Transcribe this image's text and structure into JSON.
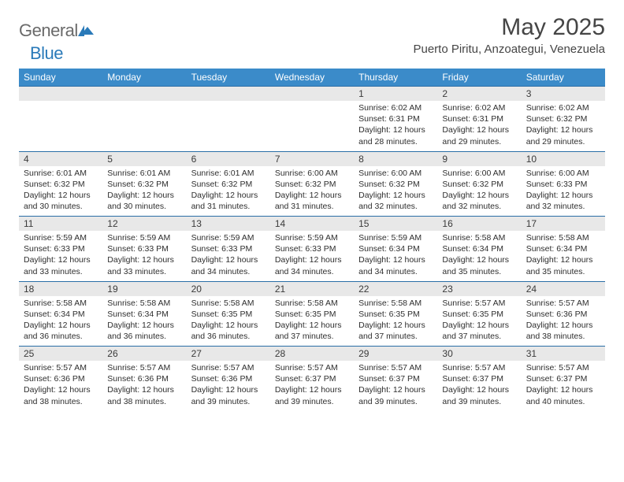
{
  "brand": {
    "part1": "General",
    "part2": "Blue"
  },
  "title": "May 2025",
  "location": "Puerto Piritu, Anzoategui, Venezuela",
  "colors": {
    "header_bg": "#3b8bc9",
    "header_text": "#ffffff",
    "daynum_bg": "#e8e8e8",
    "border": "#2a6ea6",
    "text": "#2e2e2e",
    "title_text": "#454545",
    "logo_gray": "#6a6a6a",
    "logo_blue": "#2a7ab9"
  },
  "fonts": {
    "title_size_pt": 22,
    "location_size_pt": 11,
    "header_size_pt": 9,
    "body_size_pt": 8
  },
  "day_headers": [
    "Sunday",
    "Monday",
    "Tuesday",
    "Wednesday",
    "Thursday",
    "Friday",
    "Saturday"
  ],
  "weeks": [
    {
      "nums": [
        "",
        "",
        "",
        "",
        "1",
        "2",
        "3"
      ],
      "cells": [
        null,
        null,
        null,
        null,
        {
          "sunrise": "Sunrise: 6:02 AM",
          "sunset": "Sunset: 6:31 PM",
          "day1": "Daylight: 12 hours",
          "day2": "and 28 minutes."
        },
        {
          "sunrise": "Sunrise: 6:02 AM",
          "sunset": "Sunset: 6:31 PM",
          "day1": "Daylight: 12 hours",
          "day2": "and 29 minutes."
        },
        {
          "sunrise": "Sunrise: 6:02 AM",
          "sunset": "Sunset: 6:32 PM",
          "day1": "Daylight: 12 hours",
          "day2": "and 29 minutes."
        }
      ]
    },
    {
      "nums": [
        "4",
        "5",
        "6",
        "7",
        "8",
        "9",
        "10"
      ],
      "cells": [
        {
          "sunrise": "Sunrise: 6:01 AM",
          "sunset": "Sunset: 6:32 PM",
          "day1": "Daylight: 12 hours",
          "day2": "and 30 minutes."
        },
        {
          "sunrise": "Sunrise: 6:01 AM",
          "sunset": "Sunset: 6:32 PM",
          "day1": "Daylight: 12 hours",
          "day2": "and 30 minutes."
        },
        {
          "sunrise": "Sunrise: 6:01 AM",
          "sunset": "Sunset: 6:32 PM",
          "day1": "Daylight: 12 hours",
          "day2": "and 31 minutes."
        },
        {
          "sunrise": "Sunrise: 6:00 AM",
          "sunset": "Sunset: 6:32 PM",
          "day1": "Daylight: 12 hours",
          "day2": "and 31 minutes."
        },
        {
          "sunrise": "Sunrise: 6:00 AM",
          "sunset": "Sunset: 6:32 PM",
          "day1": "Daylight: 12 hours",
          "day2": "and 32 minutes."
        },
        {
          "sunrise": "Sunrise: 6:00 AM",
          "sunset": "Sunset: 6:32 PM",
          "day1": "Daylight: 12 hours",
          "day2": "and 32 minutes."
        },
        {
          "sunrise": "Sunrise: 6:00 AM",
          "sunset": "Sunset: 6:33 PM",
          "day1": "Daylight: 12 hours",
          "day2": "and 32 minutes."
        }
      ]
    },
    {
      "nums": [
        "11",
        "12",
        "13",
        "14",
        "15",
        "16",
        "17"
      ],
      "cells": [
        {
          "sunrise": "Sunrise: 5:59 AM",
          "sunset": "Sunset: 6:33 PM",
          "day1": "Daylight: 12 hours",
          "day2": "and 33 minutes."
        },
        {
          "sunrise": "Sunrise: 5:59 AM",
          "sunset": "Sunset: 6:33 PM",
          "day1": "Daylight: 12 hours",
          "day2": "and 33 minutes."
        },
        {
          "sunrise": "Sunrise: 5:59 AM",
          "sunset": "Sunset: 6:33 PM",
          "day1": "Daylight: 12 hours",
          "day2": "and 34 minutes."
        },
        {
          "sunrise": "Sunrise: 5:59 AM",
          "sunset": "Sunset: 6:33 PM",
          "day1": "Daylight: 12 hours",
          "day2": "and 34 minutes."
        },
        {
          "sunrise": "Sunrise: 5:59 AM",
          "sunset": "Sunset: 6:34 PM",
          "day1": "Daylight: 12 hours",
          "day2": "and 34 minutes."
        },
        {
          "sunrise": "Sunrise: 5:58 AM",
          "sunset": "Sunset: 6:34 PM",
          "day1": "Daylight: 12 hours",
          "day2": "and 35 minutes."
        },
        {
          "sunrise": "Sunrise: 5:58 AM",
          "sunset": "Sunset: 6:34 PM",
          "day1": "Daylight: 12 hours",
          "day2": "and 35 minutes."
        }
      ]
    },
    {
      "nums": [
        "18",
        "19",
        "20",
        "21",
        "22",
        "23",
        "24"
      ],
      "cells": [
        {
          "sunrise": "Sunrise: 5:58 AM",
          "sunset": "Sunset: 6:34 PM",
          "day1": "Daylight: 12 hours",
          "day2": "and 36 minutes."
        },
        {
          "sunrise": "Sunrise: 5:58 AM",
          "sunset": "Sunset: 6:34 PM",
          "day1": "Daylight: 12 hours",
          "day2": "and 36 minutes."
        },
        {
          "sunrise": "Sunrise: 5:58 AM",
          "sunset": "Sunset: 6:35 PM",
          "day1": "Daylight: 12 hours",
          "day2": "and 36 minutes."
        },
        {
          "sunrise": "Sunrise: 5:58 AM",
          "sunset": "Sunset: 6:35 PM",
          "day1": "Daylight: 12 hours",
          "day2": "and 37 minutes."
        },
        {
          "sunrise": "Sunrise: 5:58 AM",
          "sunset": "Sunset: 6:35 PM",
          "day1": "Daylight: 12 hours",
          "day2": "and 37 minutes."
        },
        {
          "sunrise": "Sunrise: 5:57 AM",
          "sunset": "Sunset: 6:35 PM",
          "day1": "Daylight: 12 hours",
          "day2": "and 37 minutes."
        },
        {
          "sunrise": "Sunrise: 5:57 AM",
          "sunset": "Sunset: 6:36 PM",
          "day1": "Daylight: 12 hours",
          "day2": "and 38 minutes."
        }
      ]
    },
    {
      "nums": [
        "25",
        "26",
        "27",
        "28",
        "29",
        "30",
        "31"
      ],
      "cells": [
        {
          "sunrise": "Sunrise: 5:57 AM",
          "sunset": "Sunset: 6:36 PM",
          "day1": "Daylight: 12 hours",
          "day2": "and 38 minutes."
        },
        {
          "sunrise": "Sunrise: 5:57 AM",
          "sunset": "Sunset: 6:36 PM",
          "day1": "Daylight: 12 hours",
          "day2": "and 38 minutes."
        },
        {
          "sunrise": "Sunrise: 5:57 AM",
          "sunset": "Sunset: 6:36 PM",
          "day1": "Daylight: 12 hours",
          "day2": "and 39 minutes."
        },
        {
          "sunrise": "Sunrise: 5:57 AM",
          "sunset": "Sunset: 6:37 PM",
          "day1": "Daylight: 12 hours",
          "day2": "and 39 minutes."
        },
        {
          "sunrise": "Sunrise: 5:57 AM",
          "sunset": "Sunset: 6:37 PM",
          "day1": "Daylight: 12 hours",
          "day2": "and 39 minutes."
        },
        {
          "sunrise": "Sunrise: 5:57 AM",
          "sunset": "Sunset: 6:37 PM",
          "day1": "Daylight: 12 hours",
          "day2": "and 39 minutes."
        },
        {
          "sunrise": "Sunrise: 5:57 AM",
          "sunset": "Sunset: 6:37 PM",
          "day1": "Daylight: 12 hours",
          "day2": "and 40 minutes."
        }
      ]
    }
  ]
}
